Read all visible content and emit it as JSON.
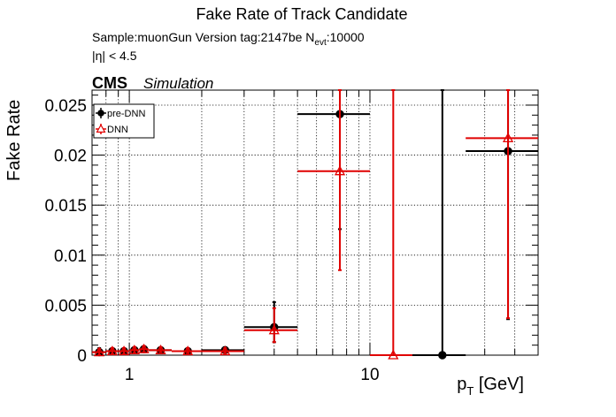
{
  "header": {
    "title": "Fake Rate of Track Candidate",
    "meta_prefix": "Sample:muonGun   Version tag:2147be  N",
    "meta_sub": "evt",
    "meta_suffix": ":10000",
    "eta_cut": "|η| < 4.5",
    "cms": "CMS",
    "simulation": "Simulation"
  },
  "chart_data": {
    "type": "scatter",
    "title": "Fake Rate of Track Candidate",
    "xlabel_main": "p",
    "xlabel_sub": "T",
    "xlabel_unit": " [GeV]",
    "ylabel": "Fake Rate",
    "x_scale": "log",
    "xlim": [
      0.7,
      50
    ],
    "ylim": [
      0,
      0.0265
    ],
    "grid": true,
    "legend_position": "top-left",
    "x_tick_labels": [
      {
        "value": 1,
        "label": "1"
      },
      {
        "value": 10,
        "label": "10"
      }
    ],
    "y_tick_labels": [
      {
        "value": 0,
        "label": "0"
      },
      {
        "value": 0.005,
        "label": "0.005"
      },
      {
        "value": 0.01,
        "label": "0.01"
      },
      {
        "value": 0.015,
        "label": "0.015"
      },
      {
        "value": 0.02,
        "label": "0.02"
      },
      {
        "value": 0.025,
        "label": "0.025"
      }
    ],
    "series": [
      {
        "name": "pre-DNN",
        "color": "#000000",
        "marker": "circle",
        "points": [
          {
            "x": 0.75,
            "xlo": 0.7,
            "xhi": 0.8,
            "y": 0.0003,
            "elo": 0.0003,
            "ehi": 0.0004
          },
          {
            "x": 0.85,
            "xlo": 0.8,
            "xhi": 0.9,
            "y": 0.0004,
            "elo": 0.0003,
            "ehi": 0.0003
          },
          {
            "x": 0.95,
            "xlo": 0.9,
            "xhi": 1.0,
            "y": 0.0004,
            "elo": 0.0003,
            "ehi": 0.0003
          },
          {
            "x": 1.05,
            "xlo": 1.0,
            "xhi": 1.1,
            "y": 0.0005,
            "elo": 0.0003,
            "ehi": 0.0003
          },
          {
            "x": 1.15,
            "xlo": 1.1,
            "xhi": 1.2,
            "y": 0.0006,
            "elo": 0.0003,
            "ehi": 0.0003
          },
          {
            "x": 1.35,
            "xlo": 1.2,
            "xhi": 1.5,
            "y": 0.0005,
            "elo": 0.0002,
            "ehi": 0.0003
          },
          {
            "x": 1.75,
            "xlo": 1.5,
            "xhi": 2.0,
            "y": 0.0004,
            "elo": 0.0002,
            "ehi": 0.0003
          },
          {
            "x": 2.5,
            "xlo": 2.0,
            "xhi": 3.0,
            "y": 0.0005,
            "elo": 0.0002,
            "ehi": 0.0003
          },
          {
            "x": 4.0,
            "xlo": 3.0,
            "xhi": 5.0,
            "y": 0.0028,
            "elo": 0.0015,
            "ehi": 0.0025
          },
          {
            "x": 7.5,
            "xlo": 5.0,
            "xhi": 10.0,
            "y": 0.0241,
            "elo": 0.0115,
            "ehi": 0.0024
          },
          {
            "x": 20.0,
            "xlo": 15.0,
            "xhi": 25.0,
            "y": 0.0,
            "elo": 0.0,
            "ehi": 0.0265
          },
          {
            "x": 37.5,
            "xlo": 25.0,
            "xhi": 50.0,
            "y": 0.0204,
            "elo": 0.0168,
            "ehi": 0.0061
          }
        ]
      },
      {
        "name": "DNN",
        "color": "#e00000",
        "marker": "open-triangle",
        "points": [
          {
            "x": 0.75,
            "xlo": 0.7,
            "xhi": 0.8,
            "y": 0.0003,
            "elo": 0.0003,
            "ehi": 0.0003
          },
          {
            "x": 0.85,
            "xlo": 0.8,
            "xhi": 0.9,
            "y": 0.0004,
            "elo": 0.0003,
            "ehi": 0.0003
          },
          {
            "x": 0.95,
            "xlo": 0.9,
            "xhi": 1.0,
            "y": 0.0004,
            "elo": 0.0003,
            "ehi": 0.0003
          },
          {
            "x": 1.05,
            "xlo": 1.0,
            "xhi": 1.1,
            "y": 0.0005,
            "elo": 0.0003,
            "ehi": 0.0003
          },
          {
            "x": 1.15,
            "xlo": 1.1,
            "xhi": 1.2,
            "y": 0.0006,
            "elo": 0.0003,
            "ehi": 0.0003
          },
          {
            "x": 1.35,
            "xlo": 1.2,
            "xhi": 1.5,
            "y": 0.0005,
            "elo": 0.0002,
            "ehi": 0.0003
          },
          {
            "x": 1.75,
            "xlo": 1.5,
            "xhi": 2.0,
            "y": 0.0004,
            "elo": 0.0002,
            "ehi": 0.0003
          },
          {
            "x": 2.5,
            "xlo": 2.0,
            "xhi": 3.0,
            "y": 0.0004,
            "elo": 0.0002,
            "ehi": 0.0003
          },
          {
            "x": 4.0,
            "xlo": 3.0,
            "xhi": 5.0,
            "y": 0.0025,
            "elo": 0.0012,
            "ehi": 0.0022
          },
          {
            "x": 7.5,
            "xlo": 5.0,
            "xhi": 10.0,
            "y": 0.0184,
            "elo": 0.0099,
            "ehi": 0.0081
          },
          {
            "x": 12.5,
            "xlo": 10.0,
            "xhi": 15.0,
            "y": 0.0,
            "elo": 0.0,
            "ehi": 0.0265
          },
          {
            "x": 37.5,
            "xlo": 25.0,
            "xhi": 50.0,
            "y": 0.0217,
            "elo": 0.018,
            "ehi": 0.0048
          }
        ]
      }
    ]
  }
}
